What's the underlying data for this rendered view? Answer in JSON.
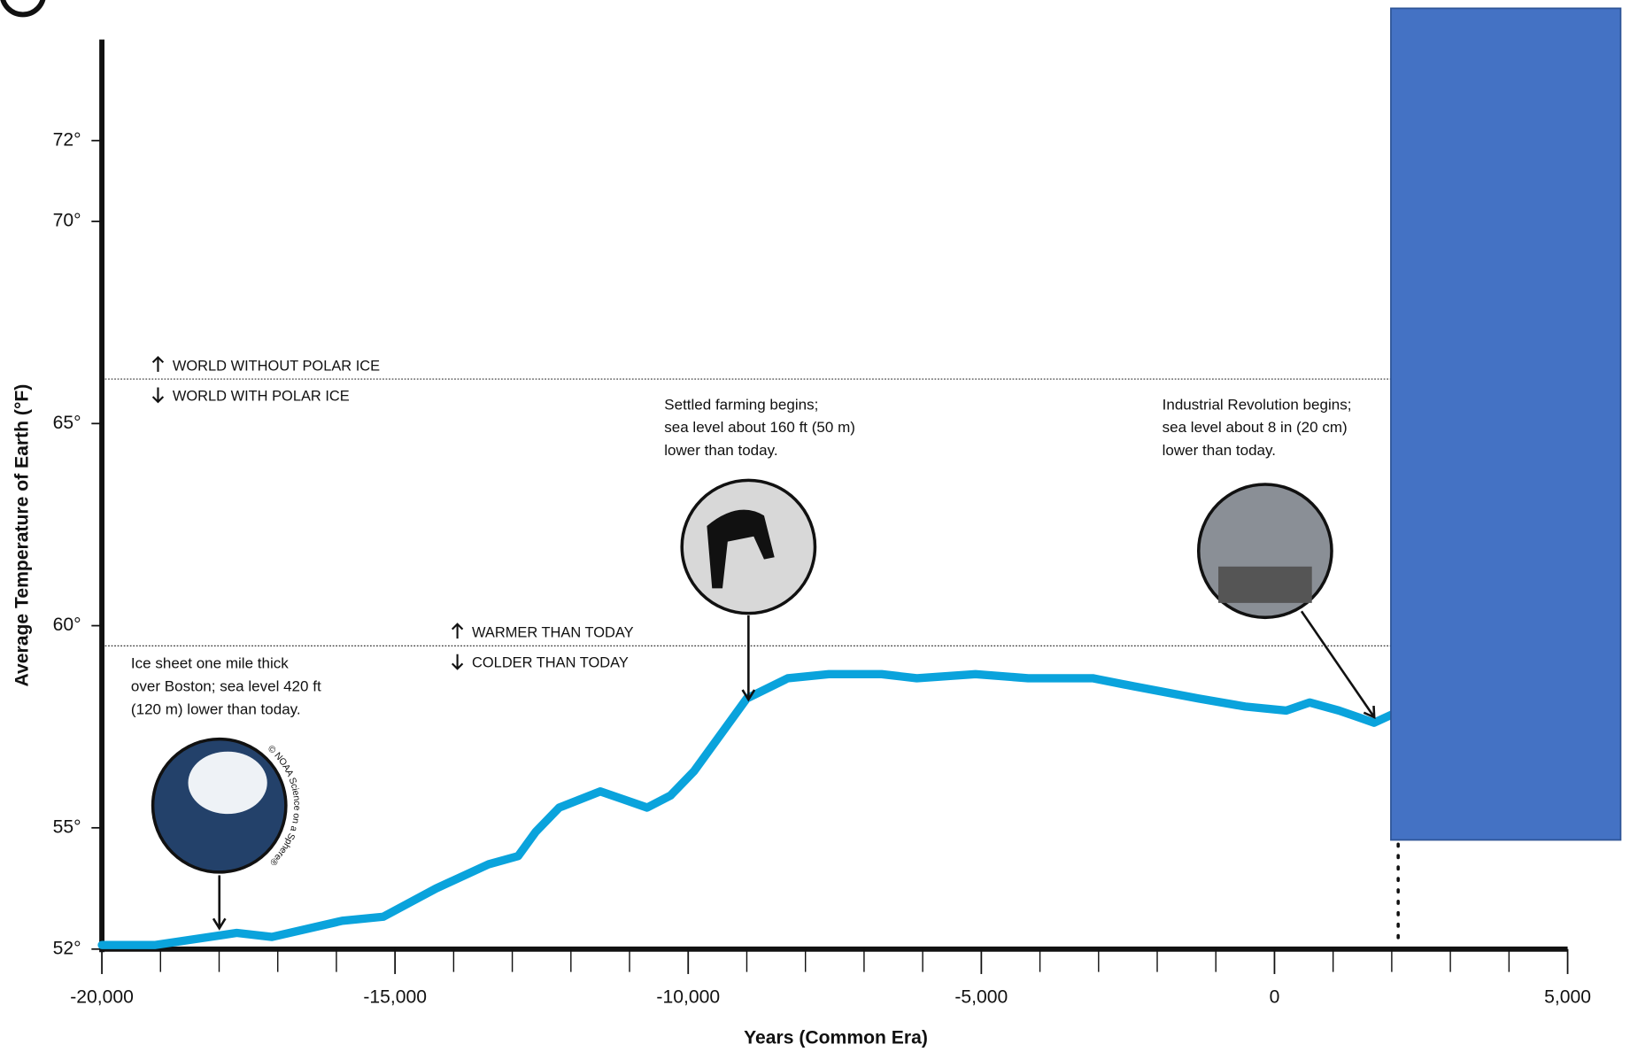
{
  "chart_data": {
    "type": "line",
    "x_label": "Years (Common Era)",
    "y_label": "Average Temperature of Earth (°F)",
    "xlim": [
      -20000,
      5000
    ],
    "ylim": [
      52,
      74.5
    ],
    "xticks": [
      {
        "value": -20000,
        "label": "-20,000"
      },
      {
        "value": -15000,
        "label": "-15,000"
      },
      {
        "value": -10000,
        "label": "-10,000"
      },
      {
        "value": -5000,
        "label": "-5,000"
      },
      0,
      {
        "value": 5000,
        "label": "5,000"
      }
    ],
    "xticks_minor": [
      -19000,
      -18000,
      -17000,
      -16000,
      -14000,
      -13000,
      -12000,
      -11000,
      -9000,
      -8000,
      -7000,
      -6000,
      -4000,
      -3000,
      -2000,
      -1000,
      1000,
      2000,
      3000,
      4000
    ],
    "yticks": [
      {
        "value": 52,
        "label": "52°"
      },
      {
        "value": 55,
        "label": "55°"
      },
      {
        "value": 60,
        "label": "60°"
      },
      {
        "value": 65,
        "label": "65°"
      },
      {
        "value": 70,
        "label": "70°"
      },
      {
        "value": 72,
        "label": "72°"
      }
    ],
    "series": [
      {
        "color": "#0aa3dc",
        "x": [
          -20000,
          -19100,
          -17700,
          -17100,
          -15900,
          -15200,
          -14300,
          -13400,
          -12900,
          -12600,
          -12200,
          -11500,
          -11100,
          -10700,
          -10300,
          -9900,
          -9500,
          -9000,
          -8300,
          -7600,
          -6700,
          -6100,
          -5100,
          -4200,
          -3100,
          -2400,
          -1300,
          -500,
          200,
          600,
          1100,
          1700,
          2000
        ],
        "values": [
          52.1,
          52.1,
          52.4,
          52.3,
          52.7,
          52.8,
          53.5,
          54.1,
          54.3,
          54.9,
          55.5,
          55.9,
          55.7,
          55.5,
          55.8,
          56.4,
          57.2,
          58.2,
          58.7,
          58.8,
          58.8,
          58.7,
          58.8,
          58.7,
          58.7,
          58.5,
          58.2,
          58.0,
          57.9,
          58.1,
          57.9,
          57.6,
          57.8
        ]
      }
    ],
    "reference_lines": [
      {
        "value": 66.1,
        "above": "WORLD WITHOUT POLAR ICE",
        "below": "WORLD WITH POLAR ICE"
      },
      {
        "value": 59.5,
        "above": "WARMER THAN TODAY",
        "below": "COLDER THAN TODAY"
      }
    ],
    "annotations": [
      {
        "lines": [
          "Ice sheet one mile thick",
          "over Boston; sea level 420 ft",
          "(120 m) lower than today."
        ],
        "credit": "© NOAA Science on a Sphere®"
      },
      {
        "lines": [
          "Settled farming begins;",
          "sea level about 160 ft (50 m)",
          "lower than today."
        ]
      },
      {
        "lines": [
          "Industrial Revolution begins;",
          "sea level about 8 in (20 cm)",
          "lower than today."
        ]
      }
    ]
  }
}
